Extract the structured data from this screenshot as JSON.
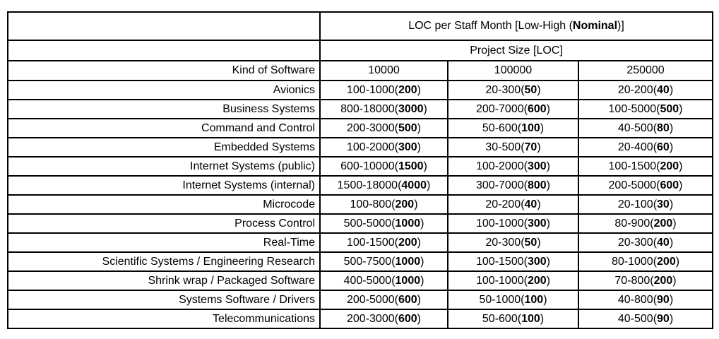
{
  "table": {
    "title": {
      "prefix": "LOC per Staff Month [Low-High (",
      "bold": "Nominal",
      "suffix": ")]"
    },
    "subtitle": "Project Size [LOC]",
    "corner_header": "Kind of Software",
    "size_headers": [
      "10000",
      "100000",
      "250000"
    ],
    "format": {
      "open": "(",
      "close": ")"
    },
    "rows": [
      {
        "label": "Avionics",
        "cells": [
          {
            "range": "100-1000",
            "nominal": "200"
          },
          {
            "range": "20-300",
            "nominal": "50"
          },
          {
            "range": "20-200",
            "nominal": "40"
          }
        ]
      },
      {
        "label": "Business Systems",
        "cells": [
          {
            "range": "800-18000",
            "nominal": "3000"
          },
          {
            "range": "200-7000",
            "nominal": "600"
          },
          {
            "range": "100-5000",
            "nominal": "500"
          }
        ]
      },
      {
        "label": "Command and Control",
        "cells": [
          {
            "range": "200-3000",
            "nominal": "500"
          },
          {
            "range": "50-600",
            "nominal": "100"
          },
          {
            "range": "40-500",
            "nominal": "80"
          }
        ]
      },
      {
        "label": "Embedded Systems",
        "cells": [
          {
            "range": "100-2000",
            "nominal": "300"
          },
          {
            "range": "30-500",
            "nominal": "70"
          },
          {
            "range": "20-400",
            "nominal": "60"
          }
        ]
      },
      {
        "label": "Internet Systems (public)",
        "cells": [
          {
            "range": "600-10000",
            "nominal": "1500"
          },
          {
            "range": "100-2000",
            "nominal": "300"
          },
          {
            "range": "100-1500",
            "nominal": "200"
          }
        ]
      },
      {
        "label": "Internet Systems (internal)",
        "cells": [
          {
            "range": "1500-18000",
            "nominal": "4000"
          },
          {
            "range": "300-7000",
            "nominal": "800"
          },
          {
            "range": "200-5000",
            "nominal": "600"
          }
        ]
      },
      {
        "label": "Microcode",
        "cells": [
          {
            "range": "100-800",
            "nominal": "200"
          },
          {
            "range": "20-200",
            "nominal": "40"
          },
          {
            "range": "20-100",
            "nominal": "30"
          }
        ]
      },
      {
        "label": "Process Control",
        "cells": [
          {
            "range": "500-5000",
            "nominal": "1000"
          },
          {
            "range": "100-1000",
            "nominal": "300"
          },
          {
            "range": "80-900",
            "nominal": "200"
          }
        ]
      },
      {
        "label": "Real-Time",
        "cells": [
          {
            "range": "100-1500",
            "nominal": "200"
          },
          {
            "range": "20-300",
            "nominal": "50"
          },
          {
            "range": "20-300",
            "nominal": "40"
          }
        ]
      },
      {
        "label": "Scientific Systems / Engineering Research",
        "cells": [
          {
            "range": "500-7500",
            "nominal": "1000"
          },
          {
            "range": "100-1500",
            "nominal": "300"
          },
          {
            "range": "80-1000",
            "nominal": "200"
          }
        ]
      },
      {
        "label": "Shrink wrap / Packaged Software",
        "cells": [
          {
            "range": "400-5000",
            "nominal": "1000"
          },
          {
            "range": "100-1000",
            "nominal": "200"
          },
          {
            "range": "70-800",
            "nominal": "200"
          }
        ]
      },
      {
        "label": "Systems Software / Drivers",
        "cells": [
          {
            "range": "200-5000",
            "nominal": "600"
          },
          {
            "range": "50-1000",
            "nominal": "100"
          },
          {
            "range": "40-800",
            "nominal": "90"
          }
        ]
      },
      {
        "label": "Telecommunications",
        "cells": [
          {
            "range": "200-3000",
            "nominal": "600"
          },
          {
            "range": "50-600",
            "nominal": "100"
          },
          {
            "range": "40-500",
            "nominal": "90"
          }
        ]
      }
    ],
    "colors": {
      "border": "#000000",
      "text": "#000000",
      "background": "#ffffff"
    }
  }
}
